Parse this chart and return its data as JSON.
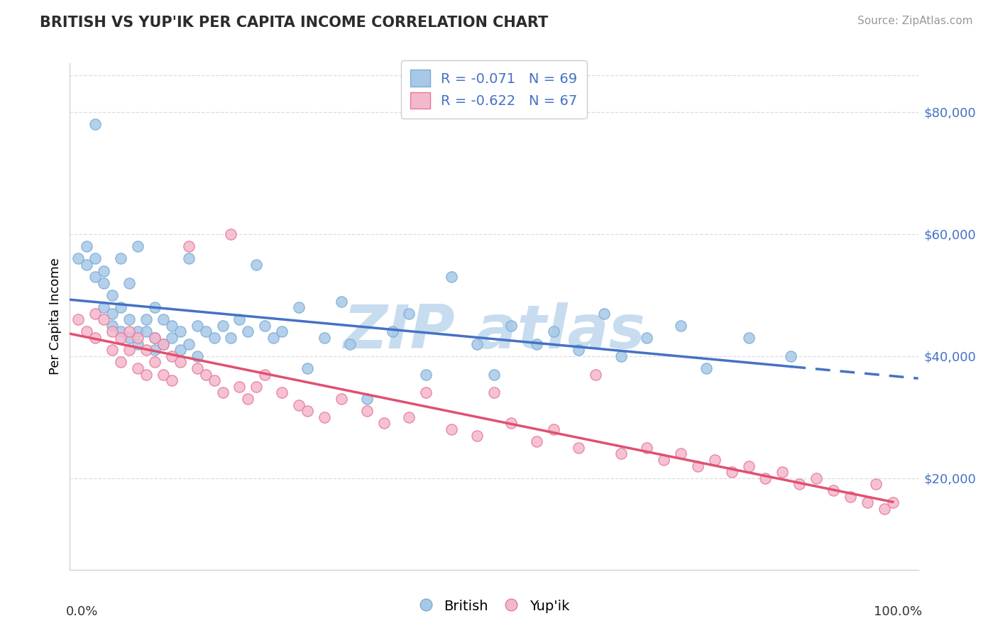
{
  "title": "BRITISH VS YUP'IK PER CAPITA INCOME CORRELATION CHART",
  "source": "Source: ZipAtlas.com",
  "ylabel": "Per Capita Income",
  "yticks": [
    20000,
    40000,
    60000,
    80000
  ],
  "ytick_labels": [
    "$20,000",
    "$40,000",
    "$60,000",
    "$80,000"
  ],
  "xlim": [
    0.0,
    1.0
  ],
  "ylim": [
    5000,
    88000
  ],
  "british_color": "#a8c8e8",
  "british_edge_color": "#7aadd4",
  "yupik_color": "#f4b8cc",
  "yupik_edge_color": "#e87898",
  "british_line_color": "#4472c4",
  "yupik_line_color": "#e05070",
  "watermark_color": "#c8dcf0",
  "axis_label_color": "#4472c4",
  "british_R": -0.071,
  "british_N": 69,
  "yupik_R": -0.622,
  "yupik_N": 67,
  "british_x": [
    0.01,
    0.02,
    0.02,
    0.03,
    0.03,
    0.03,
    0.04,
    0.04,
    0.04,
    0.05,
    0.05,
    0.05,
    0.06,
    0.06,
    0.06,
    0.07,
    0.07,
    0.07,
    0.08,
    0.08,
    0.08,
    0.09,
    0.09,
    0.1,
    0.1,
    0.1,
    0.11,
    0.11,
    0.12,
    0.12,
    0.13,
    0.13,
    0.14,
    0.14,
    0.15,
    0.15,
    0.16,
    0.17,
    0.18,
    0.19,
    0.2,
    0.21,
    0.22,
    0.23,
    0.24,
    0.25,
    0.27,
    0.28,
    0.3,
    0.32,
    0.33,
    0.35,
    0.38,
    0.4,
    0.42,
    0.45,
    0.48,
    0.5,
    0.52,
    0.55,
    0.57,
    0.6,
    0.63,
    0.65,
    0.68,
    0.72,
    0.75,
    0.8,
    0.85
  ],
  "british_y": [
    56000,
    55000,
    58000,
    53000,
    56000,
    78000,
    52000,
    48000,
    54000,
    50000,
    47000,
    45000,
    56000,
    44000,
    48000,
    52000,
    46000,
    43000,
    58000,
    44000,
    42000,
    46000,
    44000,
    48000,
    43000,
    41000,
    46000,
    42000,
    45000,
    43000,
    44000,
    41000,
    56000,
    42000,
    45000,
    40000,
    44000,
    43000,
    45000,
    43000,
    46000,
    44000,
    55000,
    45000,
    43000,
    44000,
    48000,
    38000,
    43000,
    49000,
    42000,
    33000,
    44000,
    47000,
    37000,
    53000,
    42000,
    37000,
    45000,
    42000,
    44000,
    41000,
    47000,
    40000,
    43000,
    45000,
    38000,
    43000,
    40000
  ],
  "yupik_x": [
    0.01,
    0.02,
    0.03,
    0.03,
    0.04,
    0.05,
    0.05,
    0.06,
    0.06,
    0.07,
    0.07,
    0.08,
    0.08,
    0.09,
    0.09,
    0.1,
    0.1,
    0.11,
    0.11,
    0.12,
    0.12,
    0.13,
    0.14,
    0.15,
    0.16,
    0.17,
    0.18,
    0.19,
    0.2,
    0.21,
    0.22,
    0.23,
    0.25,
    0.27,
    0.28,
    0.3,
    0.32,
    0.35,
    0.37,
    0.4,
    0.42,
    0.45,
    0.48,
    0.5,
    0.52,
    0.55,
    0.57,
    0.6,
    0.62,
    0.65,
    0.68,
    0.7,
    0.72,
    0.74,
    0.76,
    0.78,
    0.8,
    0.82,
    0.84,
    0.86,
    0.88,
    0.9,
    0.92,
    0.94,
    0.95,
    0.96,
    0.97
  ],
  "yupik_y": [
    46000,
    44000,
    47000,
    43000,
    46000,
    44000,
    41000,
    43000,
    39000,
    44000,
    41000,
    43000,
    38000,
    41000,
    37000,
    43000,
    39000,
    42000,
    37000,
    40000,
    36000,
    39000,
    58000,
    38000,
    37000,
    36000,
    34000,
    60000,
    35000,
    33000,
    35000,
    37000,
    34000,
    32000,
    31000,
    30000,
    33000,
    31000,
    29000,
    30000,
    34000,
    28000,
    27000,
    34000,
    29000,
    26000,
    28000,
    25000,
    37000,
    24000,
    25000,
    23000,
    24000,
    22000,
    23000,
    21000,
    22000,
    20000,
    21000,
    19000,
    20000,
    18000,
    17000,
    16000,
    19000,
    15000,
    16000
  ],
  "legend_r_color": "#4472c4",
  "grid_color": "#dddddd",
  "grid_linestyle": "--"
}
